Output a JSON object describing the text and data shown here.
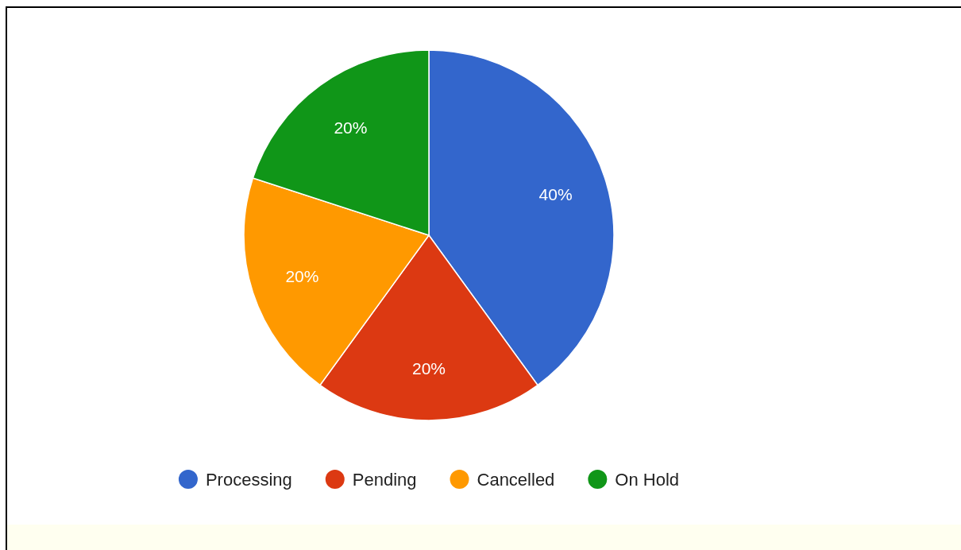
{
  "chart_data": {
    "type": "pie",
    "categories": [
      "Processing",
      "Pending",
      "Cancelled",
      "On Hold"
    ],
    "values": [
      40,
      20,
      20,
      20
    ],
    "colors": [
      "#3366cc",
      "#dc3912",
      "#ff9900",
      "#109618"
    ],
    "value_labels": [
      "40%",
      "20%",
      "20%",
      "20%"
    ],
    "legend": "bottom"
  }
}
